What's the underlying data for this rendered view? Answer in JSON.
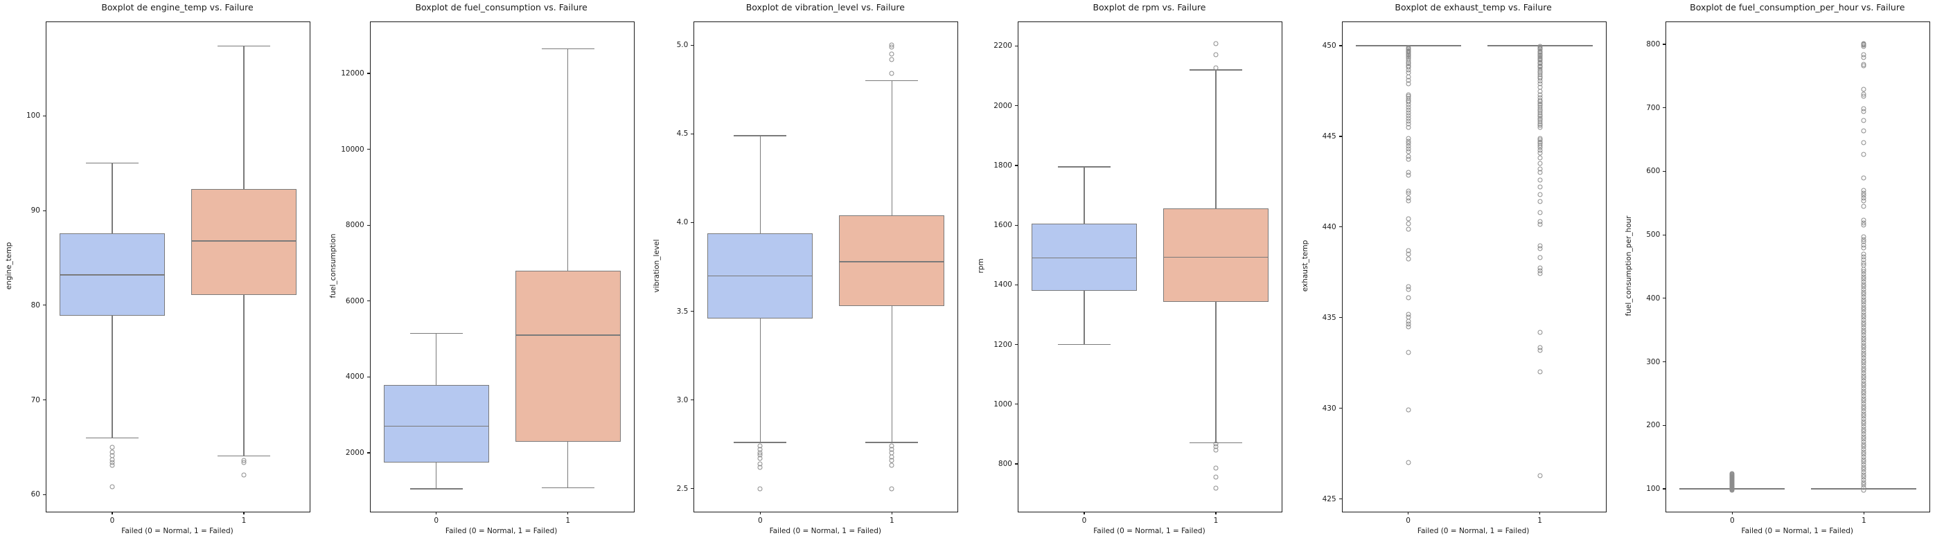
{
  "colors": {
    "background": "#ffffff",
    "box_normal": "#b5c8f0",
    "box_failed": "#ecbaa4",
    "line": "#7a7a7a",
    "spine": "#1a1a1a",
    "flier_edge": "#8c8c8c",
    "text": "#1a1a1a"
  },
  "chart_data": [
    {
      "type": "boxplot",
      "title": "Boxplot de engine_temp vs. Failure",
      "xlabel": "Failed (0 = Normal, 1 = Failed)",
      "ylabel": "engine_temp",
      "categories": [
        "0",
        "1"
      ],
      "grid": false,
      "ylim": [
        58.2,
        109.9
      ],
      "yticks": [
        {
          "value": 60,
          "label": "60"
        },
        {
          "value": 70,
          "label": "70"
        },
        {
          "value": 80,
          "label": "80"
        },
        {
          "value": 90,
          "label": "90"
        },
        {
          "value": 100,
          "label": "100"
        }
      ],
      "series": [
        {
          "category": "0",
          "color": "#b5c8f0",
          "whisker_low": 66.0,
          "q1": 78.9,
          "median": 83.2,
          "q3": 87.6,
          "whisker_high": 95.0,
          "outliers": [
            65.0,
            64.5,
            64.1,
            63.7,
            63.4,
            63.1,
            60.8
          ]
        },
        {
          "category": "1",
          "color": "#ecbaa4",
          "whisker_low": 64.1,
          "q1": 81.1,
          "median": 86.8,
          "q3": 92.3,
          "whisker_high": 107.4,
          "outliers": [
            63.6,
            63.4,
            62.1
          ]
        }
      ]
    },
    {
      "type": "boxplot",
      "title": "Boxplot de fuel_consumption vs. Failure",
      "xlabel": "Failed (0 = Normal, 1 = Failed)",
      "ylabel": "fuel_consumption",
      "categories": [
        "0",
        "1"
      ],
      "grid": false,
      "ylim": [
        450,
        13350
      ],
      "yticks": [
        {
          "value": 2000,
          "label": "2000"
        },
        {
          "value": 4000,
          "label": "4000"
        },
        {
          "value": 6000,
          "label": "6000"
        },
        {
          "value": 8000,
          "label": "8000"
        },
        {
          "value": 10000,
          "label": "10000"
        },
        {
          "value": 12000,
          "label": "12000"
        }
      ],
      "series": [
        {
          "category": "0",
          "color": "#b5c8f0",
          "whisker_low": 1050,
          "q1": 1750,
          "median": 2700,
          "q3": 3780,
          "whisker_high": 5150,
          "outliers": []
        },
        {
          "category": "1",
          "color": "#ecbaa4",
          "whisker_low": 1080,
          "q1": 2300,
          "median": 5100,
          "q3": 6800,
          "whisker_high": 12650,
          "outliers": []
        }
      ]
    },
    {
      "type": "boxplot",
      "title": "Boxplot de vibration_level vs. Failure",
      "xlabel": "Failed (0 = Normal, 1 = Failed)",
      "ylabel": "vibration_level",
      "categories": [
        "0",
        "1"
      ],
      "grid": false,
      "ylim": [
        2.37,
        5.13
      ],
      "yticks": [
        {
          "value": 2.5,
          "label": "2.5"
        },
        {
          "value": 3.0,
          "label": "3.0"
        },
        {
          "value": 3.5,
          "label": "3.5"
        },
        {
          "value": 4.0,
          "label": "4.0"
        },
        {
          "value": 4.5,
          "label": "4.5"
        },
        {
          "value": 5.0,
          "label": "5.0"
        }
      ],
      "series": [
        {
          "category": "0",
          "color": "#b5c8f0",
          "whisker_low": 2.76,
          "q1": 3.46,
          "median": 3.7,
          "q3": 3.94,
          "whisker_high": 4.49,
          "outliers": [
            2.74,
            2.72,
            2.7,
            2.69,
            2.67,
            2.64,
            2.62,
            2.5
          ]
        },
        {
          "category": "1",
          "color": "#ecbaa4",
          "whisker_low": 2.76,
          "q1": 3.53,
          "median": 3.78,
          "q3": 4.04,
          "whisker_high": 4.8,
          "outliers": [
            5.0,
            4.99,
            4.95,
            4.92,
            4.84,
            2.74,
            2.72,
            2.7,
            2.68,
            2.66,
            2.63,
            2.5
          ]
        }
      ]
    },
    {
      "type": "boxplot",
      "title": "Boxplot de rpm vs. Failure",
      "xlabel": "Failed (0 = Normal, 1 = Failed)",
      "ylabel": "rpm",
      "categories": [
        "0",
        "1"
      ],
      "grid": false,
      "ylim": [
        640,
        2280
      ],
      "yticks": [
        {
          "value": 800,
          "label": "800"
        },
        {
          "value": 1000,
          "label": "1000"
        },
        {
          "value": 1200,
          "label": "1200"
        },
        {
          "value": 1400,
          "label": "1400"
        },
        {
          "value": 1600,
          "label": "1600"
        },
        {
          "value": 1800,
          "label": "1800"
        },
        {
          "value": 2000,
          "label": "2000"
        },
        {
          "value": 2200,
          "label": "2200"
        }
      ],
      "series": [
        {
          "category": "0",
          "color": "#b5c8f0",
          "whisker_low": 1200,
          "q1": 1381,
          "median": 1490,
          "q3": 1604,
          "whisker_high": 1795,
          "outliers": []
        },
        {
          "category": "1",
          "color": "#ecbaa4",
          "whisker_low": 870,
          "q1": 1344,
          "median": 1493,
          "q3": 1656,
          "whisker_high": 2120,
          "outliers": [
            2208,
            2170,
            2128,
            868,
            858,
            846,
            785,
            755,
            718
          ]
        }
      ]
    },
    {
      "type": "boxplot",
      "title": "Boxplot de exhaust_temp vs. Failure",
      "xlabel": "Failed (0 = Normal, 1 = Failed)",
      "ylabel": "exhaust_temp",
      "categories": [
        "0",
        "1"
      ],
      "grid": false,
      "ylim": [
        424.3,
        451.3
      ],
      "yticks": [
        {
          "value": 425,
          "label": "425"
        },
        {
          "value": 430,
          "label": "430"
        },
        {
          "value": 435,
          "label": "435"
        },
        {
          "value": 440,
          "label": "440"
        },
        {
          "value": 445,
          "label": "445"
        },
        {
          "value": 450,
          "label": "450"
        }
      ],
      "series": [
        {
          "category": "0",
          "color": "#b5c8f0",
          "whisker_low": 450,
          "q1": 450,
          "median": 450,
          "q3": 450,
          "whisker_high": 450,
          "outliers": [
            449.9,
            449.85,
            449.8,
            449.75,
            449.7,
            449.65,
            449.6,
            449.5,
            449.45,
            449.4,
            449.3,
            449.2,
            449.1,
            449.0,
            448.9,
            448.8,
            448.65,
            448.5,
            448.3,
            448.1,
            447.9,
            447.3,
            447.2,
            447.1,
            447.0,
            446.9,
            446.75,
            446.6,
            446.45,
            446.3,
            446.15,
            446.0,
            445.85,
            445.7,
            445.5,
            444.9,
            444.75,
            444.6,
            444.45,
            444.3,
            444.15,
            443.9,
            443.75,
            443.0,
            442.85,
            442.0,
            441.85,
            441.6,
            441.45,
            440.45,
            440.2,
            439.9,
            438.7,
            438.5,
            438.25,
            436.7,
            436.55,
            436.1,
            435.2,
            435.05,
            434.8,
            434.65,
            434.5,
            433.1,
            429.9,
            427.0
          ]
        },
        {
          "category": "1",
          "color": "#ecbaa4",
          "whisker_low": 450,
          "q1": 450,
          "median": 450,
          "q3": 450,
          "whisker_high": 450,
          "outliers": [
            449.95,
            449.9,
            449.85,
            449.8,
            449.7,
            449.65,
            449.6,
            449.5,
            449.45,
            449.4,
            449.3,
            449.25,
            449.2,
            449.1,
            449.05,
            449.0,
            448.9,
            448.85,
            448.8,
            448.7,
            448.6,
            448.5,
            448.4,
            448.3,
            448.2,
            448.05,
            447.9,
            447.7,
            447.5,
            447.3,
            447.15,
            447.0,
            446.9,
            446.8,
            446.7,
            446.6,
            446.5,
            446.4,
            446.3,
            446.2,
            446.1,
            446.0,
            445.9,
            445.8,
            445.7,
            445.6,
            445.5,
            444.9,
            444.8,
            444.7,
            444.6,
            444.5,
            444.4,
            444.25,
            444.1,
            443.8,
            443.5,
            443.2,
            443.0,
            442.6,
            442.2,
            441.8,
            441.4,
            440.8,
            440.3,
            440.15,
            438.95,
            438.8,
            438.3,
            437.75,
            437.6,
            437.45,
            434.2,
            433.35,
            433.2,
            432.0,
            426.3
          ]
        }
      ]
    },
    {
      "type": "boxplot",
      "title": "Boxplot de fuel_consumption_per_hour vs. Failure",
      "xlabel": "Failed (0 = Normal, 1 = Failed)",
      "ylabel": "fuel_consumption_per_hour",
      "categories": [
        "0",
        "1"
      ],
      "grid": false,
      "ylim": [
        64,
        835
      ],
      "yticks": [
        {
          "value": 100,
          "label": "100"
        },
        {
          "value": 200,
          "label": "200"
        },
        {
          "value": 300,
          "label": "300"
        },
        {
          "value": 400,
          "label": "400"
        },
        {
          "value": 500,
          "label": "500"
        },
        {
          "value": 600,
          "label": "600"
        },
        {
          "value": 700,
          "label": "700"
        },
        {
          "value": 800,
          "label": "800"
        }
      ],
      "series": [
        {
          "category": "0",
          "color": "#b5c8f0",
          "whisker_low": 100,
          "q1": 100,
          "median": 100,
          "q3": 100,
          "whisker_high": 100,
          "outliers": [
            98,
            99,
            100,
            101,
            102,
            103,
            104,
            105,
            106,
            107,
            108,
            109,
            110,
            111,
            112,
            113,
            114,
            115,
            116,
            117,
            118,
            119,
            120,
            121,
            122,
            123,
            124
          ]
        },
        {
          "category": "1",
          "color": "#ecbaa4",
          "whisker_low": 100,
          "q1": 100,
          "median": 100,
          "q3": 100,
          "whisker_high": 100,
          "outliers": [
            98,
            102,
            106,
            110,
            114,
            118,
            122,
            126,
            130,
            134,
            138,
            142,
            146,
            150,
            154,
            158,
            162,
            166,
            170,
            174,
            178,
            182,
            186,
            190,
            194,
            198,
            202,
            206,
            210,
            214,
            218,
            222,
            226,
            230,
            234,
            238,
            242,
            246,
            250,
            254,
            258,
            262,
            266,
            270,
            274,
            278,
            282,
            286,
            290,
            294,
            298,
            302,
            306,
            310,
            314,
            318,
            322,
            326,
            330,
            334,
            338,
            342,
            346,
            350,
            354,
            358,
            362,
            366,
            370,
            374,
            378,
            382,
            386,
            390,
            394,
            398,
            402,
            406,
            410,
            414,
            418,
            422,
            426,
            430,
            434,
            438,
            442,
            446,
            452,
            456,
            461,
            465,
            470,
            480,
            484,
            489,
            493,
            497,
            515,
            519,
            523,
            545,
            554,
            558,
            562,
            566,
            570,
            590,
            627,
            645,
            664,
            680,
            694,
            699,
            718,
            722,
            729,
            766,
            769,
            779,
            784,
            797,
            799,
            800,
            801
          ]
        }
      ]
    }
  ]
}
